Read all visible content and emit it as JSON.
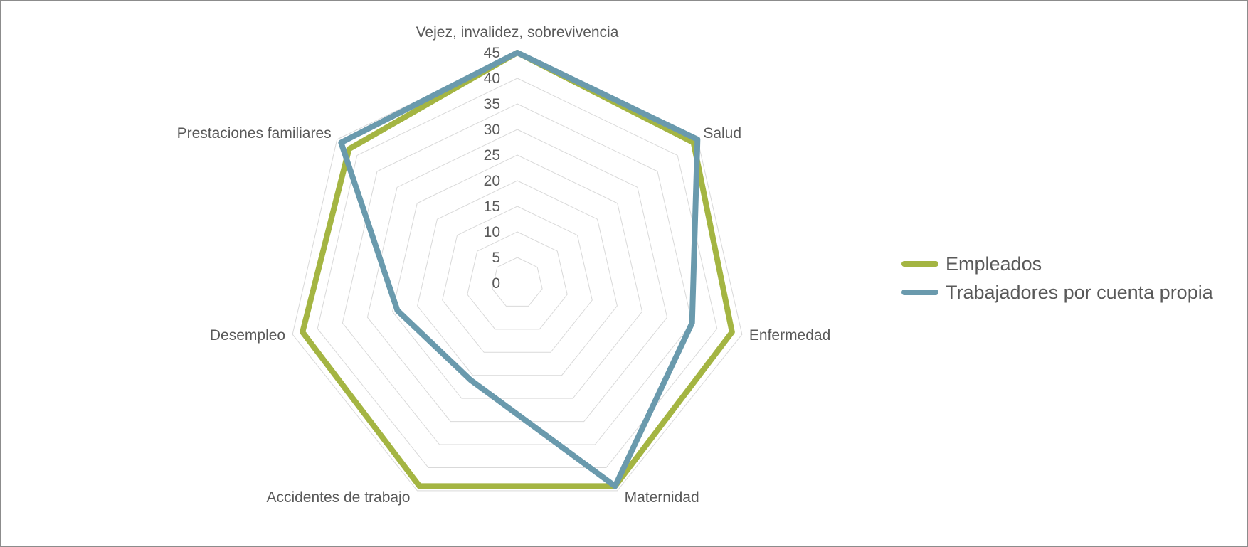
{
  "chart_data": {
    "type": "radar",
    "categories": [
      "Vejez, invalidez, sobrevivencia",
      "Salud",
      "Enfermedad",
      "Maternidad",
      "Accidentes de trabajo",
      "Desempleo",
      "Prestaciones familiares"
    ],
    "series": [
      {
        "name": "Empleados",
        "color": "#a4b542",
        "values": [
          45,
          44,
          43,
          44,
          44,
          43,
          42
        ]
      },
      {
        "name": "Trabajadores por cuenta propia",
        "color": "#6a9aad",
        "values": [
          45,
          45,
          35,
          44,
          21,
          24,
          44
        ]
      }
    ],
    "r_ticks": [
      "0",
      "5",
      "10",
      "15",
      "20",
      "25",
      "30",
      "35",
      "40",
      "45"
    ],
    "r_range": [
      0,
      45
    ],
    "grid_color": "#d9d9d9",
    "legend_position": "right"
  }
}
